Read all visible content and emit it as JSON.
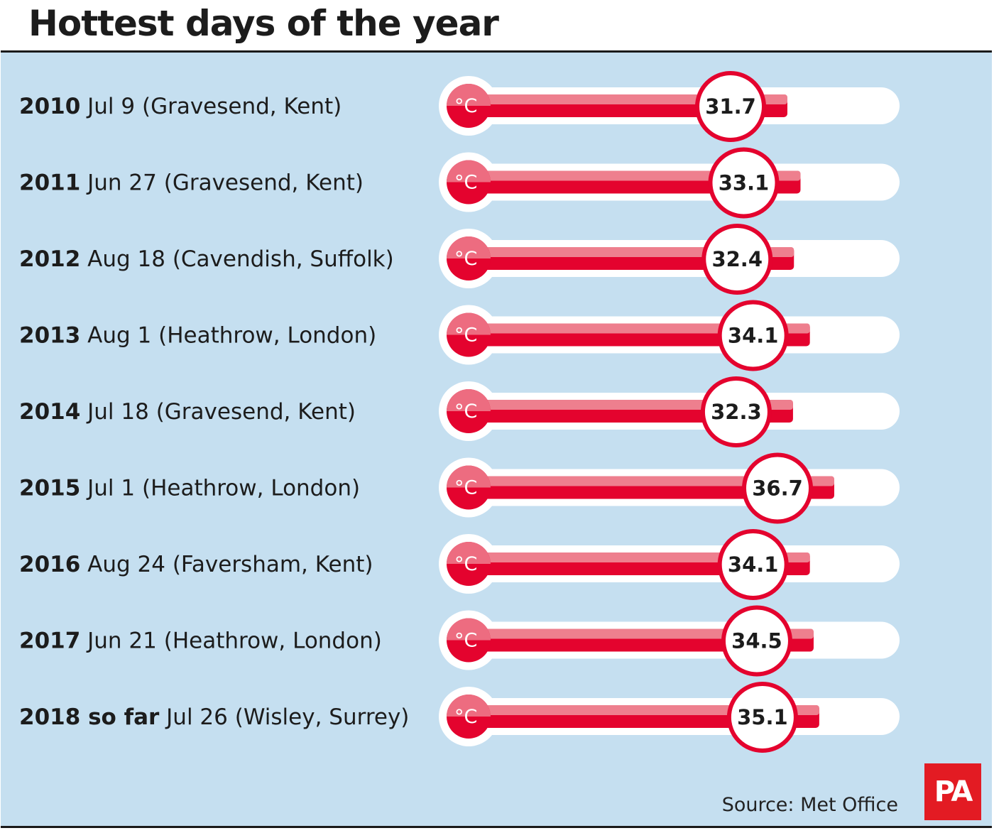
{
  "title": "Hottest days of the year",
  "source": "Source: Met Office",
  "logo": "PA",
  "colors": {
    "background": "#c5dff0",
    "mercury": "#e4032e",
    "mercury_light": "#ee7f8e",
    "tube": "#ffffff"
  },
  "chart_data": {
    "type": "bar",
    "title": "Hottest days of the year",
    "unit": "°C",
    "orientation": "horizontal",
    "style": "thermometer",
    "categories": [
      {
        "year": "2010",
        "detail": "Jul 9 (Gravesend, Kent)"
      },
      {
        "year": "2011",
        "detail": "Jun 27 (Gravesend, Kent)"
      },
      {
        "year": "2012",
        "detail": "Aug 18 (Cavendish, Suffolk)"
      },
      {
        "year": "2013",
        "detail": "Aug 1 (Heathrow, London)"
      },
      {
        "year": "2014",
        "detail": "Jul 18 (Gravesend, Kent)"
      },
      {
        "year": "2015",
        "detail": "Jul 1 (Heathrow, London)"
      },
      {
        "year": "2016",
        "detail": "Aug 24 (Faversham, Kent)"
      },
      {
        "year": "2017",
        "detail": "Jun 21 (Heathrow, London)"
      },
      {
        "year": "2018 so far",
        "detail": "Jul 26 (Wisley, Surrey)"
      }
    ],
    "values": [
      31.7,
      33.1,
      32.4,
      34.1,
      32.3,
      36.7,
      34.1,
      34.5,
      35.1
    ]
  }
}
